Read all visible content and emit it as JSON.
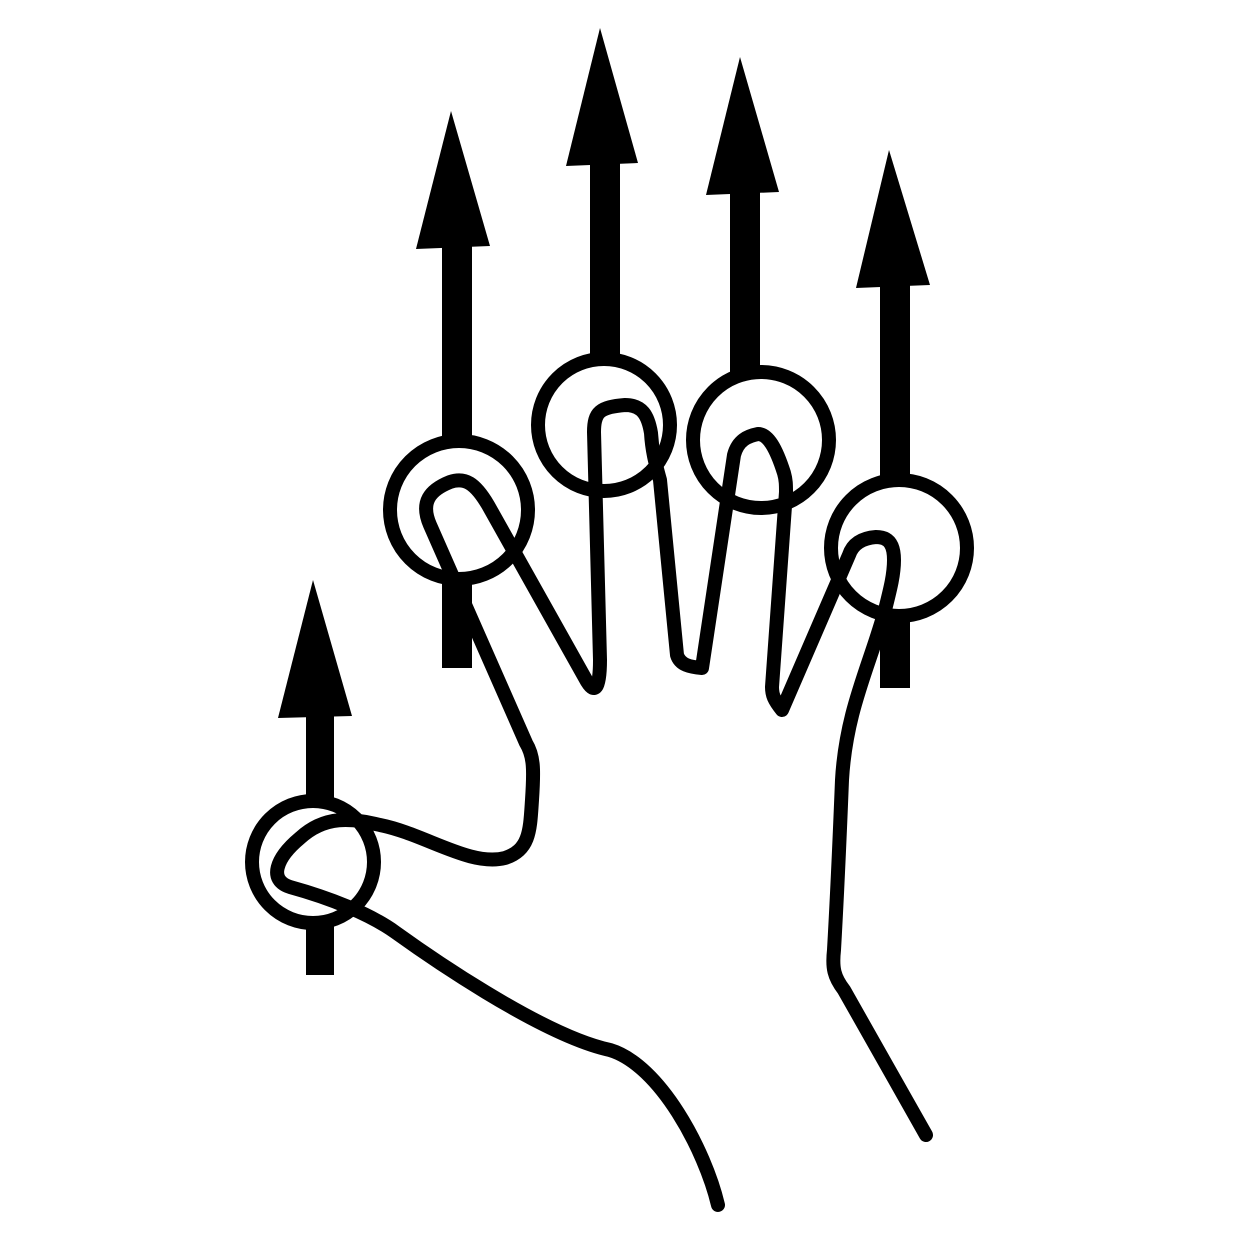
{
  "icon": {
    "name": "five-finger-swipe-up-gesture-icon",
    "finger_count": 5,
    "direction": "up"
  },
  "colors": {
    "stroke": "#000000",
    "background": "#ffffff"
  }
}
